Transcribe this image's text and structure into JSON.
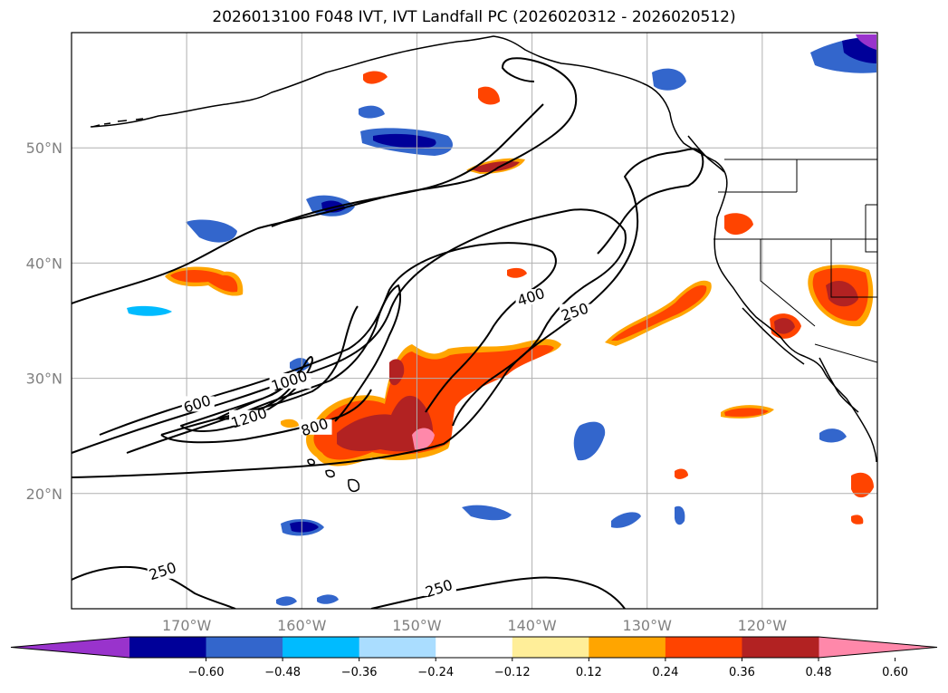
{
  "title": "2026013100 F048 IVT, IVT Landfall PC (2026020312 - 2026020512)",
  "map": {
    "lon_range": [
      -180,
      -110
    ],
    "lat_range": [
      10,
      60
    ],
    "lat_ticks": [
      {
        "value": 20,
        "label": "20°N"
      },
      {
        "value": 30,
        "label": "30°N"
      },
      {
        "value": 40,
        "label": "40°N"
      },
      {
        "value": 50,
        "label": "50°N"
      }
    ],
    "lon_ticks": [
      {
        "value": -170,
        "label": "170°W"
      },
      {
        "value": -160,
        "label": "160°W"
      },
      {
        "value": -150,
        "label": "150°W"
      },
      {
        "value": -140,
        "label": "140°W"
      },
      {
        "value": -130,
        "label": "130°W"
      },
      {
        "value": -120,
        "label": "120°W"
      }
    ],
    "grid_color": "#b0b0b0",
    "coast_color": "#000000"
  },
  "contours": {
    "units": "IVT contour levels",
    "labels": [
      {
        "text": "250",
        "lon": -172,
        "lat": 13.0
      },
      {
        "text": "250",
        "lon": -148,
        "lat": 11.5
      },
      {
        "text": "250",
        "lon": -136.2,
        "lat": 35.5
      },
      {
        "text": "400",
        "lon": -140,
        "lat": 36.8
      },
      {
        "text": "600",
        "lon": -169,
        "lat": 27.5
      },
      {
        "text": "800",
        "lon": -158.8,
        "lat": 25.5
      },
      {
        "text": "1000",
        "lon": -161,
        "lat": 29.5
      },
      {
        "text": "1200",
        "lon": -164.5,
        "lat": 26.3
      }
    ]
  },
  "shading": {
    "description": "IVT Landfall PC shaded anomalies",
    "colors": {
      "n060": "#9933cc",
      "n048": "#000099",
      "n036": "#3366cc",
      "n024": "#00bbff",
      "n012": "#aaddff",
      "p012": "#ffee99",
      "p024": "#ffa500",
      "p036": "#ff4400",
      "p048": "#b22222",
      "p060": "#ff88aa"
    }
  },
  "colorbar": {
    "colors": [
      "#9933cc",
      "#000099",
      "#3366cc",
      "#00bbff",
      "#aaddff",
      "#ffffff",
      "#ffee99",
      "#ffa500",
      "#ff4400",
      "#b22222",
      "#ff88aa"
    ],
    "tick_labels": [
      "−0.60",
      "−0.48",
      "−0.36",
      "−0.24",
      "−0.12",
      "0.12",
      "0.24",
      "0.36",
      "0.48",
      "0.60"
    ],
    "extend": "both"
  }
}
